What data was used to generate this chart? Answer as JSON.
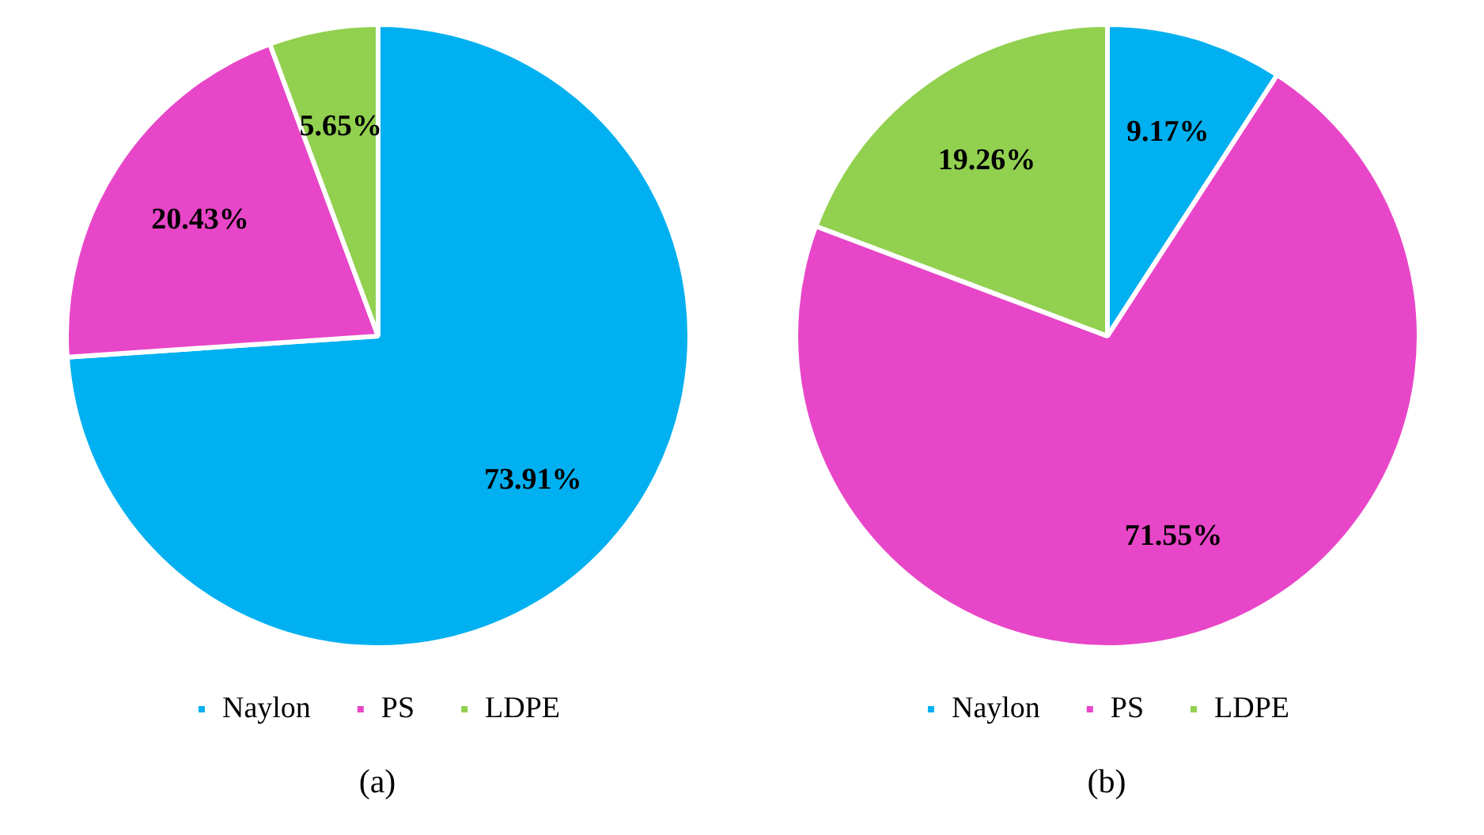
{
  "chart_data": [
    {
      "type": "pie",
      "categories": [
        "Naylon",
        "PS",
        "LDPE"
      ],
      "values": [
        73.91,
        20.43,
        5.65
      ],
      "value_labels": [
        "73.91%",
        "20.43%",
        "5.65%"
      ],
      "colors": [
        "#00b0f0",
        "#e846c8",
        "#92d050"
      ],
      "legend": "bottom",
      "annotations": [
        "(a)"
      ]
    },
    {
      "type": "pie",
      "categories": [
        "Naylon",
        "PS",
        "LDPE"
      ],
      "values": [
        9.17,
        71.55,
        19.26
      ],
      "value_labels": [
        "9.17%",
        "71.55%",
        "19.26%"
      ],
      "colors": [
        "#00b0f0",
        "#e846c8",
        "#92d050"
      ],
      "legend": "bottom",
      "annotations": [
        "(b)"
      ]
    }
  ]
}
